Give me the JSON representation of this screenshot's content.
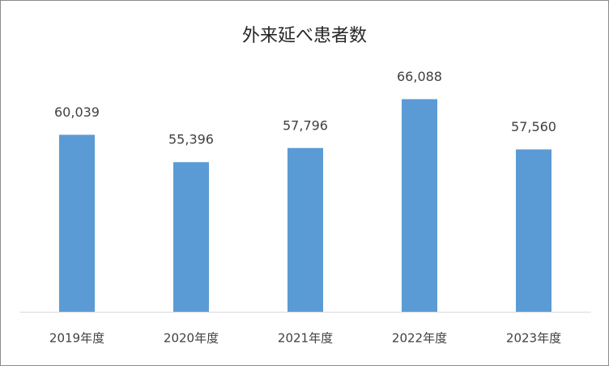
{
  "chart_data": {
    "type": "bar",
    "title": "外来延べ患者数",
    "categories": [
      "2019年度",
      "2020年度",
      "2021年度",
      "2022年度",
      "2023年度"
    ],
    "values": [
      60039,
      55396,
      57796,
      66088,
      57560
    ],
    "value_labels": [
      "60,039",
      "55,396",
      "57,796",
      "66,088",
      "57,560"
    ],
    "color": "#5b9bd5",
    "ylim": [
      30000,
      70000
    ]
  }
}
